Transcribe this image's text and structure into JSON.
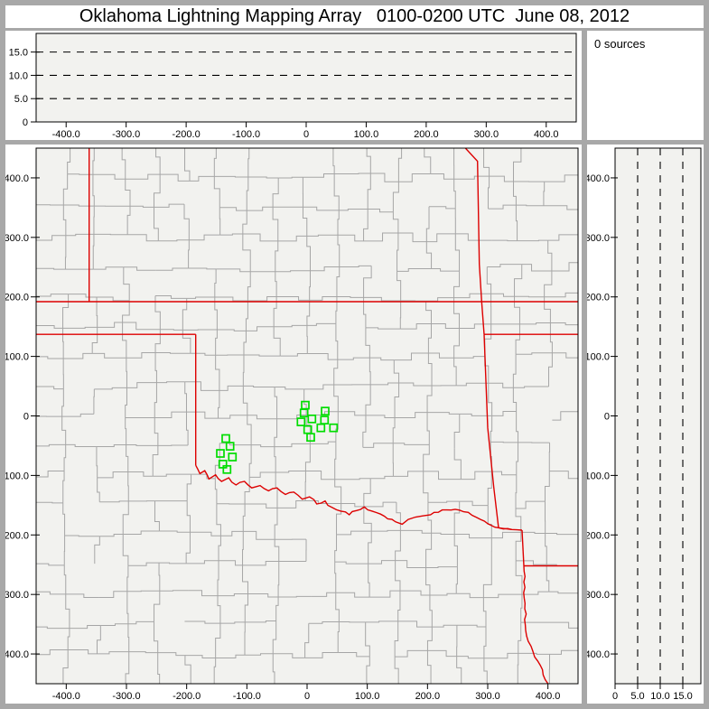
{
  "title": "Oklahoma Lightning Mapping Array   0100-0200 UTC  June 08, 2012",
  "sources_panel": {
    "label": "0 sources"
  },
  "colors": {
    "frame": "#a8a8a8",
    "panel_bg": "#ffffff",
    "plot_bg": "#f2f2ef",
    "axis": "#000000",
    "county_line": "#a6a6a6",
    "state_line": "#dd0000",
    "station": "#00dd00"
  },
  "axes": {
    "east_west_km": {
      "min": -450,
      "max": 450,
      "ticks": [
        -400,
        -300,
        -200,
        -100,
        0,
        100,
        200,
        300,
        400
      ],
      "tick_labels": [
        "-400.0",
        "-300.0",
        "-200.0",
        "-100.0",
        "0",
        "100.0",
        "200.0",
        "300.0",
        "400.0"
      ]
    },
    "north_south_km": {
      "min": -450,
      "max": 450,
      "ticks": [
        400,
        300,
        200,
        100,
        0,
        -100,
        -200,
        -300,
        -400
      ],
      "tick_labels": [
        "400.0",
        "300.0",
        "200.0",
        "100.0",
        "0",
        "-100.0",
        "-200.0",
        "-300.0",
        "-400.0"
      ]
    },
    "altitude_km": {
      "min": 0,
      "max": 19,
      "ticks": [
        0,
        5,
        10,
        15
      ],
      "tick_labels": [
        "0",
        "5.0",
        "10.0",
        "15.0"
      ],
      "gridlines": [
        5,
        10,
        15
      ]
    }
  },
  "chart_data": [
    {
      "id": "altitude-vs-east-west",
      "type": "scatter",
      "title": "",
      "xlabel": "",
      "ylabel": "",
      "xlim": [
        -450,
        450
      ],
      "ylim": [
        0,
        19
      ],
      "x_tick_labels": [
        "-400.0",
        "-300.0",
        "-200.0",
        "-100.0",
        "0",
        "100.0",
        "200.0",
        "300.0",
        "400.0"
      ],
      "y_tick_labels": [
        "0",
        "5.0",
        "10.0",
        "15.0"
      ],
      "gridlines": {
        "axis": "y",
        "values": [
          5,
          10,
          15
        ],
        "style": "dashed"
      },
      "series": [
        {
          "name": "lightning-sources",
          "points": []
        }
      ]
    },
    {
      "id": "source-count",
      "type": "table",
      "values": [
        [
          "0 sources"
        ]
      ]
    },
    {
      "id": "plan-view",
      "type": "scatter",
      "title": "",
      "xlim": [
        -450,
        450
      ],
      "ylim": [
        -450,
        450
      ],
      "x_tick_labels": [
        "-400.0",
        "-300.0",
        "-200.0",
        "-100.0",
        "0",
        "100.0",
        "200.0",
        "300.0",
        "400.0"
      ],
      "y_tick_labels": [
        "400.0",
        "300.0",
        "200.0",
        "100.0",
        "0",
        "-100.0",
        "-200.0",
        "-300.0",
        "-400.0"
      ],
      "series": [
        {
          "name": "lma-stations",
          "marker": "open-square",
          "color": "#00dd00",
          "points": [
            [
              -3,
              18
            ],
            [
              -5,
              5
            ],
            [
              8,
              -5
            ],
            [
              -10,
              -10
            ],
            [
              30,
              8
            ],
            [
              29,
              -7
            ],
            [
              23,
              -20
            ],
            [
              44,
              -20
            ],
            [
              1,
              -23
            ],
            [
              6,
              -36
            ],
            [
              -135,
              -38
            ],
            [
              -128,
              -51
            ],
            [
              -144,
              -63
            ],
            [
              -124,
              -69
            ],
            [
              -140,
              -81
            ],
            [
              -133,
              -90
            ]
          ]
        },
        {
          "name": "lightning-sources",
          "points": []
        }
      ]
    },
    {
      "id": "altitude-vs-north-south",
      "type": "scatter",
      "xlim": [
        0,
        19
      ],
      "ylim": [
        -450,
        450
      ],
      "x_tick_labels": [
        "0",
        "5.0",
        "10.0",
        "15.0"
      ],
      "y_tick_labels": [
        "400.0",
        "300.0",
        "200.0",
        "100.0",
        "0",
        "-100.0",
        "-200.0",
        "-300.0",
        "-400.0"
      ],
      "gridlines": {
        "axis": "x",
        "values": [
          5,
          10,
          15
        ],
        "style": "dashed"
      },
      "series": [
        {
          "name": "lightning-sources",
          "points": []
        }
      ]
    }
  ],
  "map": {
    "stations": [
      [
        -3,
        18
      ],
      [
        -5,
        5
      ],
      [
        8,
        -5
      ],
      [
        -10,
        -10
      ],
      [
        30,
        8
      ],
      [
        29,
        -7
      ],
      [
        23,
        -20
      ],
      [
        44,
        -20
      ],
      [
        1,
        -23
      ],
      [
        6,
        -36
      ],
      [
        -135,
        -38
      ],
      [
        -128,
        -51
      ],
      [
        -144,
        -63
      ],
      [
        -124,
        -69
      ],
      [
        -140,
        -81
      ],
      [
        -133,
        -90
      ]
    ],
    "state_borders": [
      {
        "name": "kansas-latitude-line",
        "pts": [
          [
            -450,
            192
          ],
          [
            450,
            192
          ]
        ]
      },
      {
        "name": "panhandle-south-line",
        "pts": [
          [
            -450,
            137
          ],
          [
            -185,
            137
          ]
        ]
      },
      {
        "name": "nm-tx-vertical",
        "pts": [
          [
            -362,
            450
          ],
          [
            -362,
            192
          ]
        ]
      },
      {
        "name": "ok-tx-100th-meridian",
        "pts": [
          [
            -185,
            137
          ],
          [
            -185,
            -83
          ]
        ]
      },
      {
        "name": "red-river",
        "rough": true,
        "pts": [
          [
            -185,
            -83
          ],
          [
            -178,
            -97
          ],
          [
            -170,
            -92
          ],
          [
            -163,
            -106
          ],
          [
            -152,
            -99
          ],
          [
            -142,
            -110
          ],
          [
            -130,
            -104
          ],
          [
            -118,
            -116
          ],
          [
            -104,
            -110
          ],
          [
            -92,
            -121
          ],
          [
            -78,
            -117
          ],
          [
            -64,
            -126
          ],
          [
            -50,
            -121
          ],
          [
            -36,
            -132
          ],
          [
            -22,
            -128
          ],
          [
            -8,
            -140
          ],
          [
            4,
            -136
          ],
          [
            16,
            -148
          ],
          [
            30,
            -143
          ],
          [
            42,
            -154
          ],
          [
            56,
            -160
          ],
          [
            70,
            -166
          ],
          [
            82,
            -159
          ],
          [
            95,
            -153
          ],
          [
            108,
            -160
          ],
          [
            122,
            -165
          ],
          [
            134,
            -173
          ],
          [
            147,
            -178
          ],
          [
            158,
            -182
          ],
          [
            168,
            -174
          ],
          [
            180,
            -170
          ],
          [
            192,
            -168
          ],
          [
            205,
            -166
          ],
          [
            218,
            -162
          ],
          [
            232,
            -158
          ],
          [
            246,
            -157
          ],
          [
            260,
            -161
          ],
          [
            274,
            -167
          ],
          [
            288,
            -174
          ],
          [
            300,
            -181
          ],
          [
            312,
            -187
          ],
          [
            326,
            -190
          ],
          [
            340,
            -191
          ],
          [
            357,
            -192
          ]
        ]
      },
      {
        "name": "east-border-north",
        "pts": [
          [
            263,
            450
          ],
          [
            283,
            428
          ],
          [
            286,
            255
          ],
          [
            290,
            192
          ],
          [
            294,
            137
          ]
        ]
      },
      {
        "name": "mo-ar-latitude-line",
        "pts": [
          [
            294,
            137
          ],
          [
            450,
            137
          ]
        ]
      },
      {
        "name": "ok-ar-vertical",
        "pts": [
          [
            294,
            137
          ],
          [
            300,
            -20
          ],
          [
            310,
            -120
          ],
          [
            318,
            -188
          ],
          [
            340,
            -191
          ]
        ]
      },
      {
        "name": "se-corner-vertical",
        "pts": [
          [
            357,
            -192
          ],
          [
            360,
            -252
          ]
        ]
      },
      {
        "name": "se-horizontal",
        "pts": [
          [
            360,
            -252
          ],
          [
            450,
            -252
          ]
        ]
      },
      {
        "name": "tx-ar-south",
        "rough": true,
        "pts": [
          [
            360,
            -252
          ],
          [
            363,
            -360
          ],
          [
            378,
            -405
          ],
          [
            400,
            -450
          ]
        ]
      }
    ]
  }
}
